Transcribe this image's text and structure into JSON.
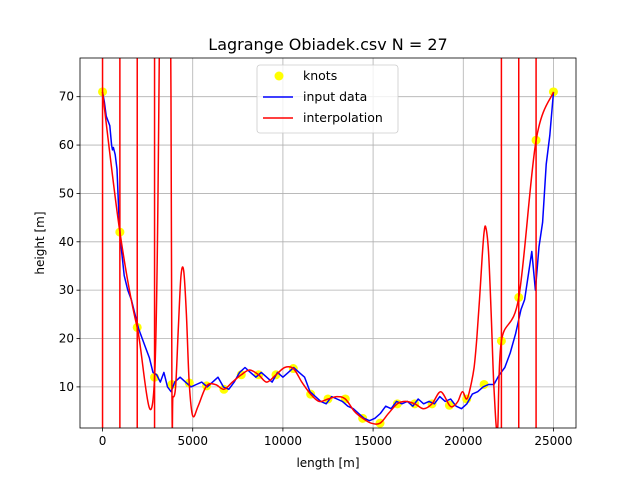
{
  "chart_data": {
    "type": "line",
    "title": "Lagrange Obiadek.csv N = 27",
    "xlabel": "length [m]",
    "ylabel": "height [m]",
    "xlim": [
      -1250,
      26250
    ],
    "ylim": [
      1.5,
      78
    ],
    "xticks": [
      0,
      5000,
      10000,
      15000,
      20000,
      25000
    ],
    "yticks": [
      10,
      20,
      30,
      40,
      50,
      60,
      70
    ],
    "grid": true,
    "legend_position": "top-center",
    "series": [
      {
        "name": "knots",
        "style": "markers",
        "color": "#ffff00",
        "x": [
          0,
          961,
          1923,
          2884,
          3846,
          4807,
          5769,
          6730,
          7692,
          8653,
          9615,
          10576,
          11538,
          12499,
          13461,
          14422,
          15384,
          16345,
          17307,
          18268,
          19230,
          20191,
          21153,
          22114,
          23076,
          24037,
          25000
        ],
        "y": [
          71,
          42,
          22.3,
          12,
          10.5,
          10.8,
          10.2,
          9.5,
          12.5,
          12.5,
          12.5,
          13.8,
          8.5,
          7.5,
          7.5,
          3.5,
          2.5,
          6.5,
          6.5,
          6.5,
          6.2,
          7.5,
          10.5,
          19.5,
          28.5,
          61,
          71
        ]
      },
      {
        "name": "input data",
        "style": "line",
        "color": "#0000ff",
        "x": [
          0,
          100,
          200,
          300,
          400,
          500,
          550,
          600,
          700,
          800,
          900,
          1000,
          1200,
          1400,
          1600,
          1800,
          2000,
          2200,
          2400,
          2600,
          2800,
          3000,
          3200,
          3400,
          3600,
          3800,
          4000,
          4300,
          4600,
          4900,
          5200,
          5500,
          5800,
          6100,
          6400,
          6700,
          7000,
          7300,
          7600,
          7900,
          8200,
          8500,
          8800,
          9100,
          9400,
          9700,
          10000,
          10300,
          10600,
          10900,
          11200,
          11500,
          11800,
          12100,
          12400,
          12700,
          13000,
          13300,
          13600,
          13900,
          14200,
          14500,
          14800,
          15100,
          15400,
          15700,
          16000,
          16300,
          16600,
          16900,
          17200,
          17500,
          17800,
          18100,
          18400,
          18700,
          19000,
          19300,
          19600,
          19900,
          20200,
          20500,
          20800,
          21100,
          21400,
          21700,
          22000,
          22300,
          22600,
          22900,
          23200,
          23400,
          23600,
          23800,
          24000,
          24200,
          24400,
          24600,
          24800,
          25000
        ],
        "y": [
          71,
          69,
          66,
          65,
          64,
          60,
          59,
          59.5,
          58,
          55,
          46,
          40,
          33,
          30,
          28,
          25,
          22,
          20,
          18,
          16,
          13,
          12.5,
          11,
          13,
          10,
          9,
          11,
          12,
          11,
          10,
          10.5,
          11,
          10,
          11,
          12,
          10,
          9.5,
          11,
          13,
          14,
          13,
          12,
          13,
          12,
          11,
          13,
          12,
          13,
          14,
          13,
          12,
          9,
          8,
          7,
          6.5,
          8,
          7.5,
          7,
          6,
          5.5,
          4.5,
          3.5,
          3,
          3.5,
          4.5,
          6,
          5.5,
          7,
          6.5,
          7,
          6,
          7.5,
          6.5,
          7,
          6.5,
          8,
          7,
          7.5,
          6,
          5.5,
          6.5,
          8.5,
          9,
          10,
          10.5,
          10.5,
          12.5,
          14,
          17,
          21,
          26,
          28,
          33,
          38,
          30,
          39,
          44,
          56,
          62,
          71
        ]
      },
      {
        "name": "interpolation",
        "style": "line",
        "color": "#ff0000",
        "x": [
          0,
          961,
          1923,
          2884,
          3300,
          3700,
          3846,
          3900,
          4050,
          4200,
          4350,
          4500,
          4650,
          4807,
          5000,
          5300,
          5769,
          6250,
          6730,
          7200,
          7692,
          8150,
          8653,
          9100,
          9615,
          10100,
          10576,
          11050,
          11538,
          12000,
          12499,
          13000,
          13461,
          13950,
          14422,
          14900,
          15384,
          15850,
          16345,
          16800,
          17307,
          17800,
          18268,
          18750,
          19230,
          19450,
          19700,
          19950,
          20191,
          20400,
          20600,
          20750,
          20900,
          21050,
          21153,
          21250,
          21400,
          21550,
          21700,
          21900,
          22114,
          23076,
          24037,
          25000
        ],
        "y": [
          71,
          42,
          22.3,
          12,
          130,
          130,
          10.5,
          8,
          10,
          22,
          33,
          34,
          25,
          10.8,
          4,
          6,
          10.2,
          10.5,
          9.5,
          11,
          12.5,
          13.5,
          12.5,
          11,
          12.5,
          14,
          13.8,
          11,
          8.5,
          7,
          7.5,
          8,
          7.5,
          5,
          3.5,
          2.5,
          2.5,
          4.5,
          6.5,
          7,
          6.5,
          5.5,
          6.5,
          9,
          6.2,
          6,
          7,
          9,
          7.5,
          10,
          14,
          20,
          28,
          37,
          42,
          43,
          38,
          25,
          10,
          1,
          19.5,
          28.5,
          61,
          71
        ]
      }
    ]
  }
}
